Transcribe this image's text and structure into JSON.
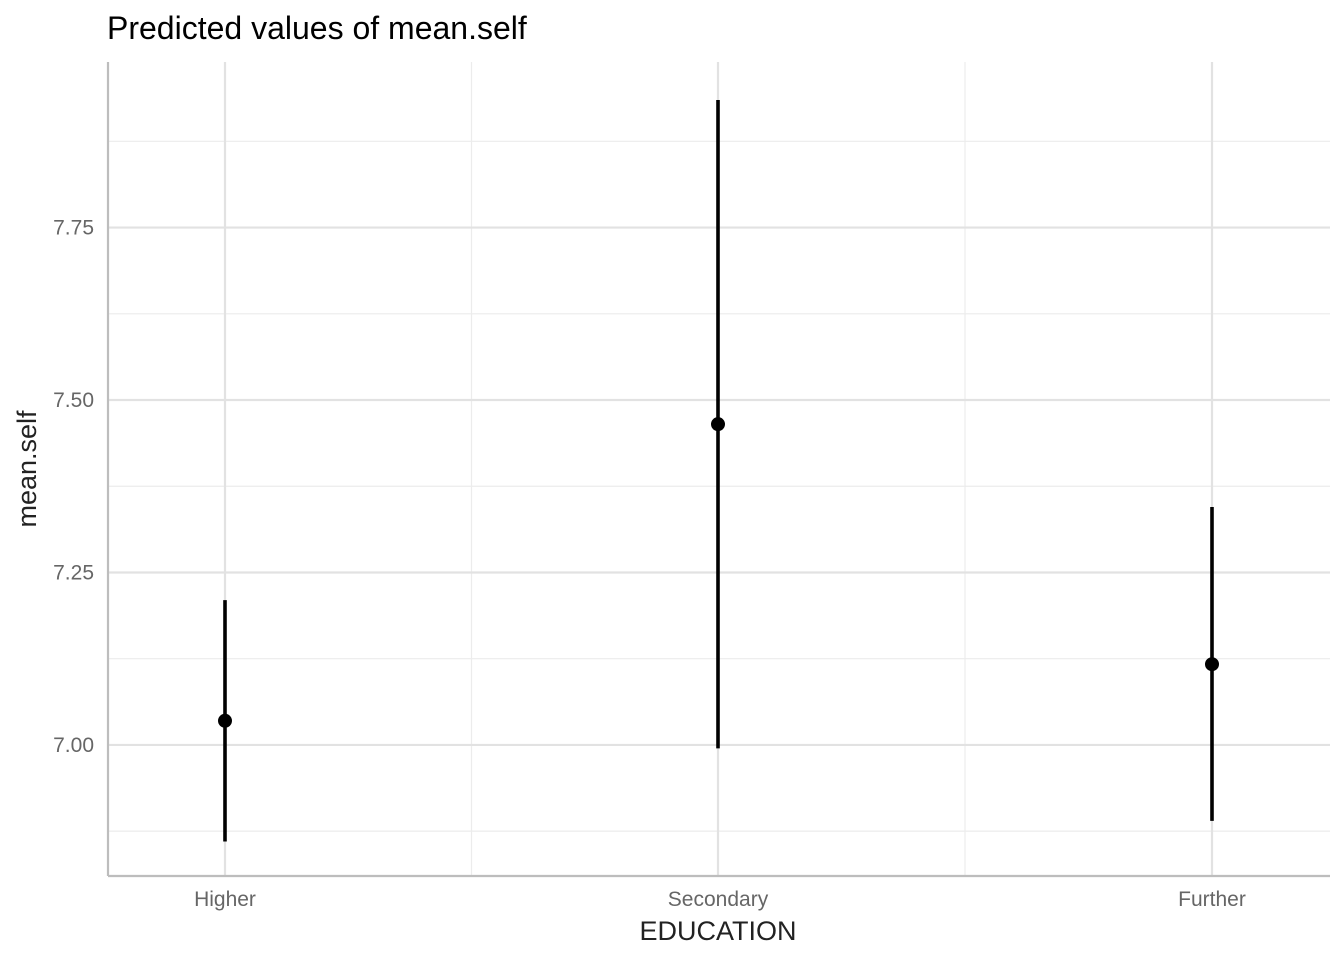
{
  "chart_data": {
    "type": "scatter",
    "title": "Predicted values of mean.self",
    "xlabel": "EDUCATION",
    "ylabel": "mean.self",
    "categories": [
      "Higher",
      "Secondary",
      "Further"
    ],
    "values": [
      7.035,
      7.465,
      7.117
    ],
    "ci_low": [
      6.86,
      6.995,
      6.89
    ],
    "ci_high": [
      7.21,
      7.935,
      7.345
    ],
    "y_ticks": [
      "7.00",
      "7.25",
      "7.50",
      "7.75"
    ],
    "ylim": [
      6.81,
      7.99
    ],
    "grid": true,
    "legend": "none",
    "colors": {
      "series": "#000000",
      "grid": "#e2e2e2",
      "axis": "#bdbdbd"
    }
  }
}
